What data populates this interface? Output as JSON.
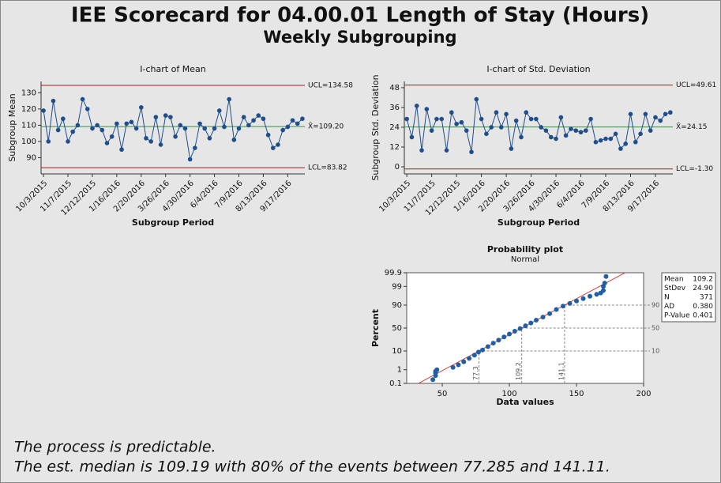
{
  "title": "IEE Scorecard for 04.00.01 Length of Stay (Hours)",
  "subtitle": "Weekly Subgrouping",
  "chart_data": [
    {
      "type": "ichart",
      "title": "I-chart of Mean",
      "ylabel": "Subgroup Mean",
      "xlabel": "Subgroup Period",
      "categories": [
        "10/3/2015",
        null,
        null,
        null,
        null,
        "11/7/2015",
        null,
        null,
        null,
        null,
        "12/12/2015",
        null,
        null,
        null,
        null,
        "1/16/2016",
        null,
        null,
        null,
        null,
        "2/20/2016",
        null,
        null,
        null,
        null,
        "3/26/2016",
        null,
        null,
        null,
        null,
        "4/30/2016",
        null,
        null,
        null,
        null,
        "6/4/2016",
        null,
        null,
        null,
        null,
        "7/9/2016",
        null,
        null,
        null,
        null,
        "8/13/2016",
        null,
        null,
        null,
        null,
        "9/17/2016",
        null,
        null,
        null
      ],
      "values": [
        119,
        100,
        125,
        107,
        114,
        100,
        106,
        110,
        126,
        120,
        108,
        110,
        107,
        99,
        103,
        111,
        95,
        111,
        112,
        108,
        121,
        102,
        100,
        115,
        98,
        116,
        115,
        103,
        110,
        108,
        89,
        96,
        111,
        108,
        102,
        108,
        119,
        109,
        126,
        101,
        108,
        115,
        110,
        113,
        116,
        114,
        104,
        96,
        98,
        107,
        109,
        113,
        111,
        114
      ],
      "color": "#1f4e8c",
      "ylim": [
        80,
        137
      ],
      "yticks": [
        90,
        100,
        110,
        120,
        130
      ],
      "limits": [
        {
          "value": 134.58,
          "label": "UCL=134.58",
          "color": "#a01c1c"
        },
        {
          "value": 109.2,
          "label": "X̄=109.20",
          "color": "#3c8c4a"
        },
        {
          "value": 83.82,
          "label": "LCL=83.82",
          "color": "#a01c1c"
        }
      ]
    },
    {
      "type": "ichart",
      "title": "I-chart of Std. Deviation",
      "ylabel": "Subgroup Std. Deviation",
      "xlabel": "Subgroup Period",
      "categories": [
        "10/3/2015",
        null,
        null,
        null,
        null,
        "11/7/2015",
        null,
        null,
        null,
        null,
        "12/12/2015",
        null,
        null,
        null,
        null,
        "1/16/2016",
        null,
        null,
        null,
        null,
        "2/20/2016",
        null,
        null,
        null,
        null,
        "3/26/2016",
        null,
        null,
        null,
        null,
        "4/30/2016",
        null,
        null,
        null,
        null,
        "6/4/2016",
        null,
        null,
        null,
        null,
        "7/9/2016",
        null,
        null,
        null,
        null,
        "8/13/2016",
        null,
        null,
        null,
        null,
        "9/17/2016",
        null,
        null,
        null
      ],
      "values": [
        29,
        18,
        37,
        10,
        35,
        22,
        29,
        29,
        10,
        33,
        26,
        27,
        22,
        9,
        41,
        29,
        20,
        24,
        33,
        24,
        32,
        11,
        28,
        18,
        33,
        29,
        29,
        24,
        22,
        18,
        17,
        30,
        19,
        23,
        22,
        21,
        22,
        29,
        15,
        16,
        17,
        17,
        20,
        11,
        14,
        32,
        15,
        20,
        32,
        22,
        30,
        28,
        32,
        33
      ],
      "color": "#1f4e8c",
      "ylim": [
        -4.3,
        51.8
      ],
      "yticks": [
        0,
        12,
        24,
        36,
        48
      ],
      "limits": [
        {
          "value": 49.61,
          "label": "UCL=49.61",
          "color": "#a01c1c"
        },
        {
          "value": 24.15,
          "label": "X̄=24.15",
          "color": "#3c8c4a"
        },
        {
          "value": -1.3,
          "label": "LCL=-1.30",
          "color": "#a01c1c"
        }
      ]
    },
    {
      "type": "probability",
      "title": "Probability plot",
      "subtitle": "Normal",
      "ylabel": "Percent",
      "xlabel": "Data values",
      "x": [
        43,
        45,
        45,
        45,
        46,
        58,
        62,
        66,
        70,
        74,
        77,
        80,
        84,
        88,
        92,
        96,
        100,
        104,
        108,
        112,
        116,
        120,
        125,
        130,
        135,
        140,
        145,
        150,
        155,
        160,
        165,
        168,
        170,
        170,
        171,
        172
      ],
      "values": [
        0.2,
        0.4,
        0.6,
        0.8,
        1.0,
        1.4,
        2,
        3,
        4.5,
        6.5,
        9,
        11,
        15,
        20,
        25,
        31,
        37,
        43,
        49,
        55,
        61,
        67,
        73,
        79,
        85,
        89,
        91.5,
        93.5,
        95,
        96.2,
        97,
        97.5,
        98.2,
        99,
        99.4,
        99.8
      ],
      "color": "#1f5fa6",
      "fit_color": "#d04040",
      "xlim": [
        23.5,
        200
      ],
      "xticks": [
        50,
        100,
        150,
        200
      ],
      "ylim": [
        0.1,
        99.9
      ],
      "yticks": [
        0.1,
        1,
        10,
        50,
        90,
        99,
        99.9
      ],
      "reference_lines": [
        {
          "x": 77.3,
          "percent": 10
        },
        {
          "x": 109.2,
          "percent": 50
        },
        {
          "x": 141.1,
          "percent": 90
        }
      ],
      "stats": {
        "labels": [
          "Mean",
          "StDev",
          "N",
          "AD",
          "P-Value"
        ],
        "values": [
          109.2,
          24.9,
          371,
          0.38,
          0.401
        ],
        "value_labels": [
          "109.2",
          "24.90",
          "371",
          "0.380",
          "0.401"
        ]
      }
    }
  ],
  "footer": [
    "The process is predictable.",
    "The est. median is 109.19 with 80% of the events between 77.285 and 141.11."
  ]
}
